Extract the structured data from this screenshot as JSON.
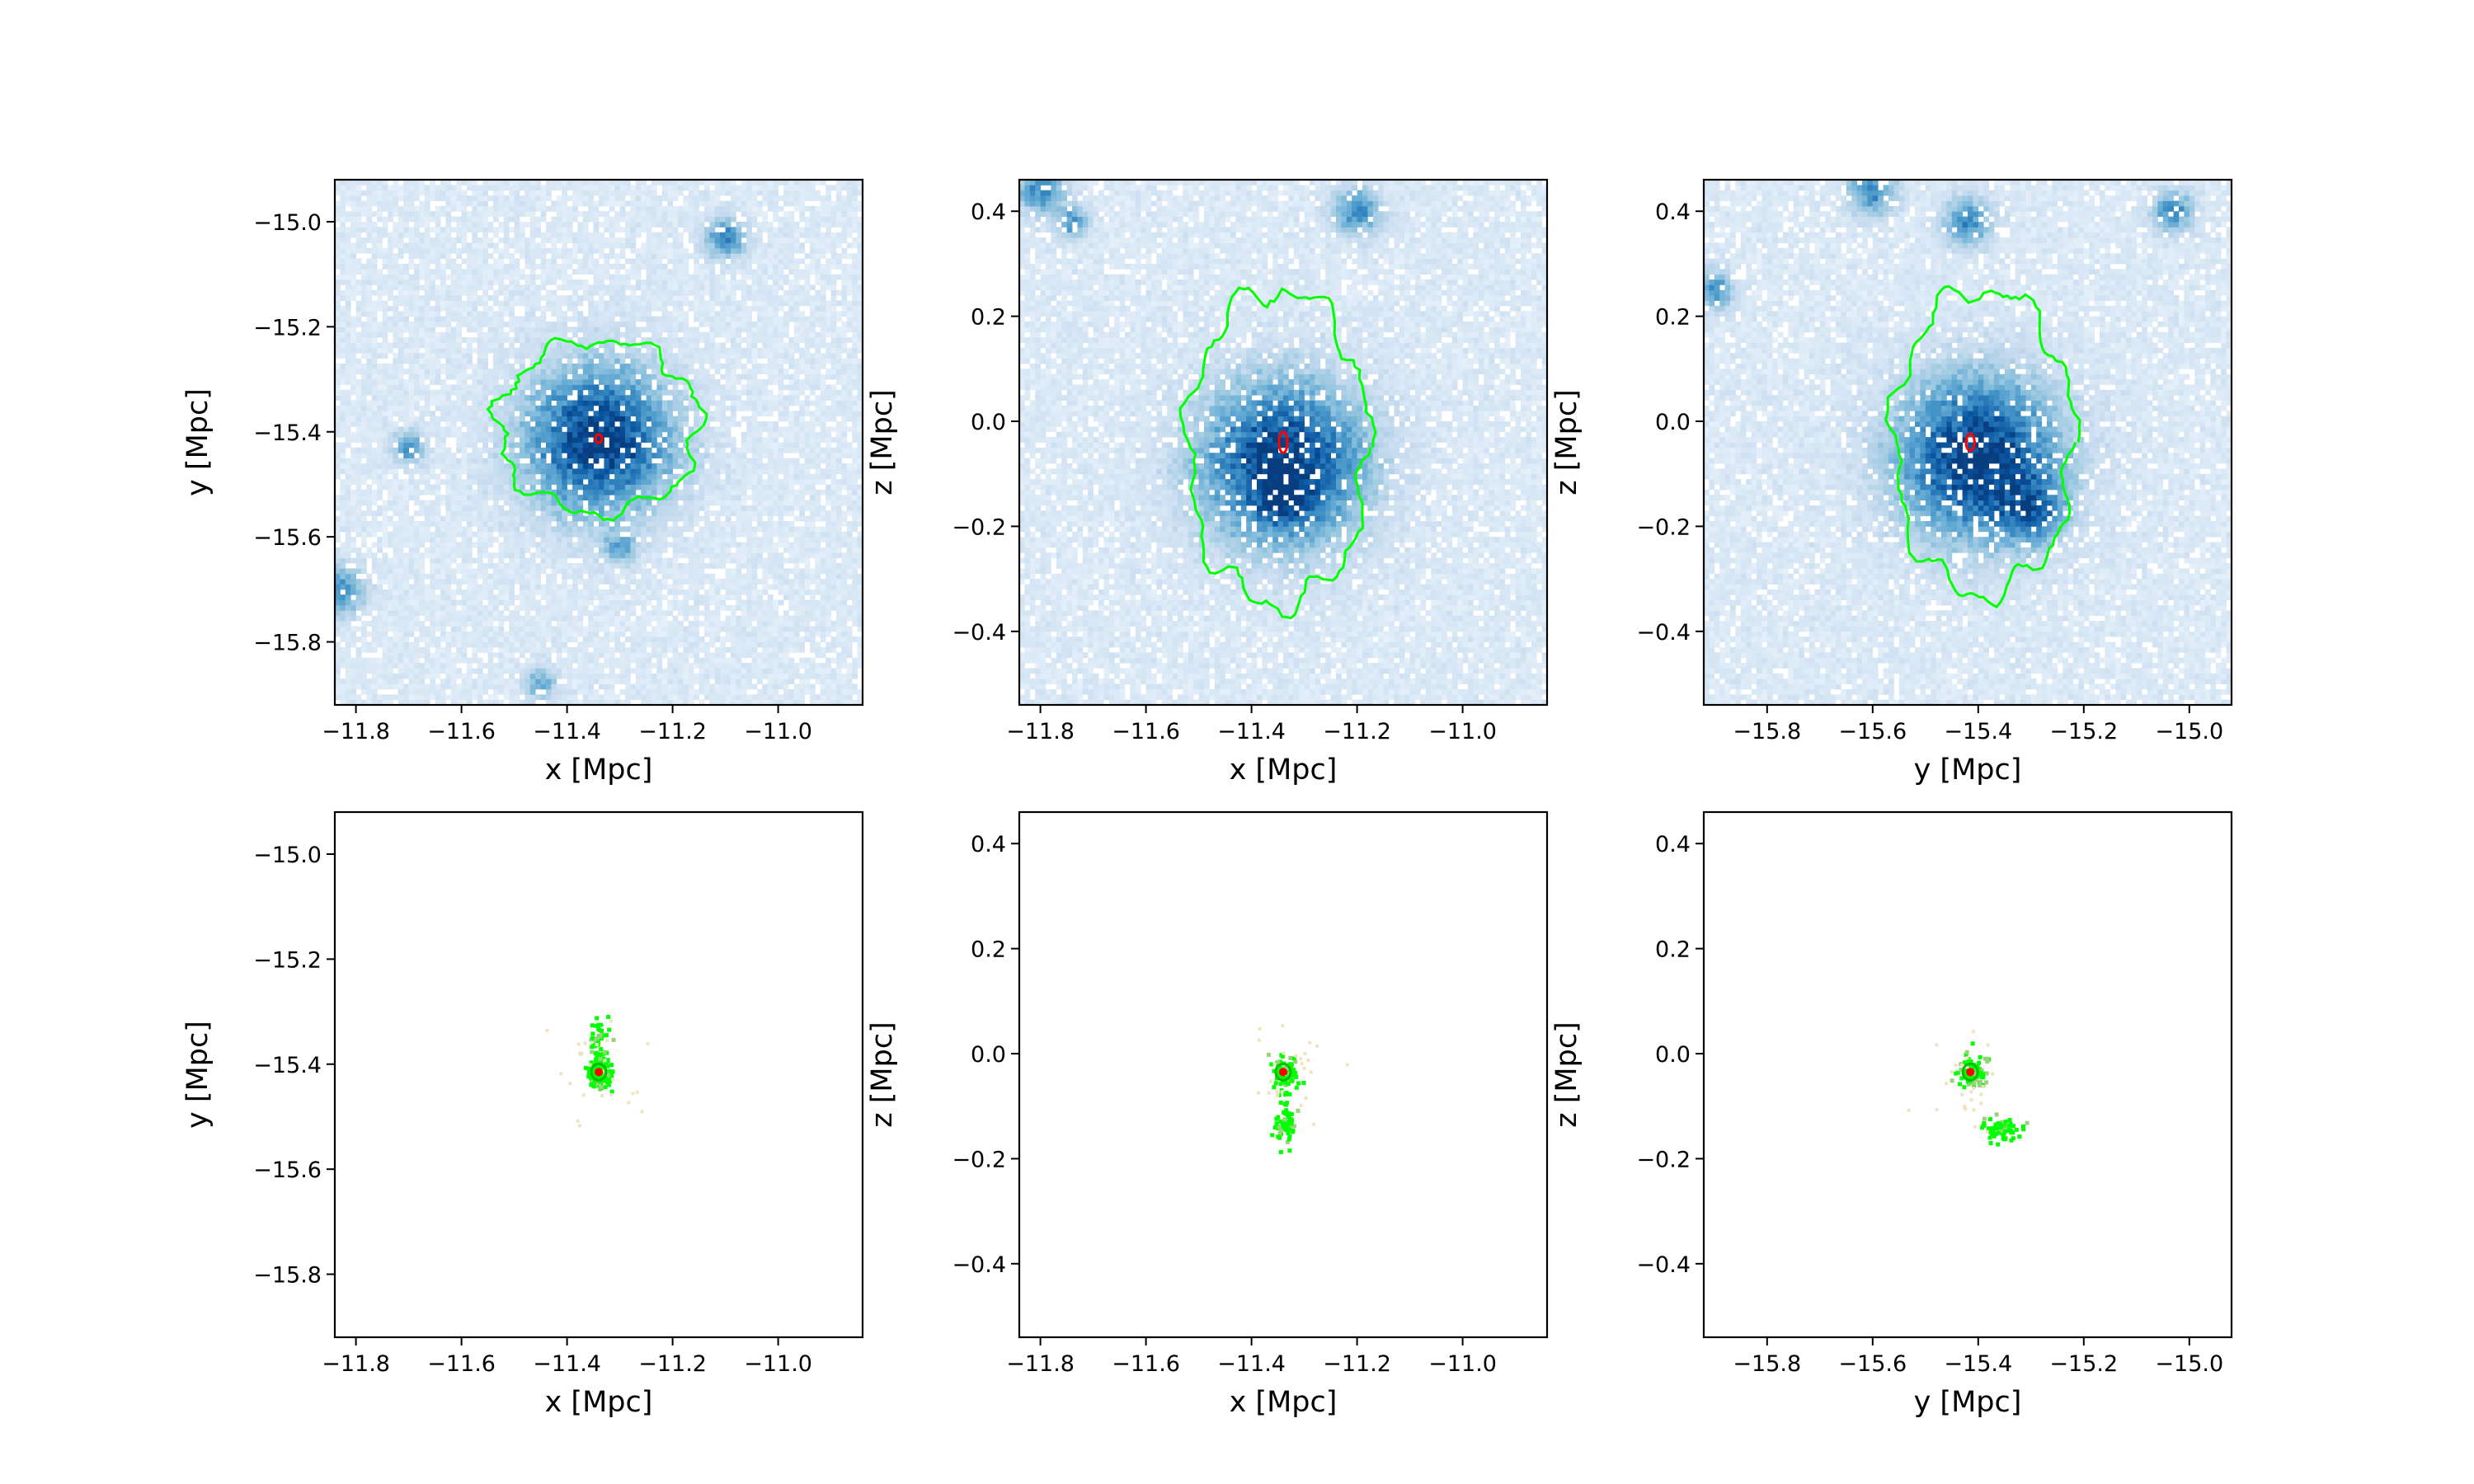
{
  "chart_data": [
    {
      "type": "heatmap",
      "row": "gas",
      "xlabel": "x [Mpc]",
      "ylabel": "y [Mpc]",
      "xlim": [
        -11.84,
        -10.84
      ],
      "ylim": [
        -15.92,
        -14.92
      ],
      "xticks": [
        "−11.8",
        "−11.6",
        "−11.4",
        "−11.2",
        "−11.0"
      ],
      "xtick_values": [
        -11.8,
        -11.6,
        -11.4,
        -11.2,
        -11.0
      ],
      "yticks": [
        "−15.8",
        "−15.6",
        "−15.4",
        "−15.2",
        "−15.0"
      ],
      "ytick_values": [
        -15.8,
        -15.6,
        -15.4,
        -15.2,
        -15.0
      ],
      "center": [
        -11.34,
        -15.415
      ],
      "density_clumps": [
        {
          "x": -11.34,
          "y": -15.415,
          "sigma": 0.09,
          "amp": 1.0
        },
        {
          "x": -11.1,
          "y": -15.03,
          "sigma": 0.025,
          "amp": 0.6
        },
        {
          "x": -11.7,
          "y": -15.43,
          "sigma": 0.02,
          "amp": 0.5
        },
        {
          "x": -11.83,
          "y": -15.7,
          "sigma": 0.03,
          "amp": 0.55
        },
        {
          "x": -11.3,
          "y": -15.62,
          "sigma": 0.02,
          "amp": 0.4
        },
        {
          "x": -11.45,
          "y": -15.88,
          "sigma": 0.02,
          "amp": 0.4
        }
      ],
      "contours": [
        {
          "color": "#00ff00",
          "rx": 0.19,
          "ry": 0.165,
          "cx": -11.34,
          "cy": -15.39
        },
        {
          "color": "#ff0000",
          "rx": 0.006,
          "ry": 0.008,
          "cx": -11.34,
          "cy": -15.413
        }
      ]
    },
    {
      "type": "heatmap",
      "row": "gas",
      "xlabel": "x [Mpc]",
      "ylabel": "z [Mpc]",
      "xlim": [
        -11.84,
        -10.84
      ],
      "ylim": [
        -0.54,
        0.46
      ],
      "xticks": [
        "−11.8",
        "−11.6",
        "−11.4",
        "−11.2",
        "−11.0"
      ],
      "xtick_values": [
        -11.8,
        -11.6,
        -11.4,
        -11.2,
        -11.0
      ],
      "yticks": [
        "−0.4",
        "−0.2",
        "0.0",
        "0.2",
        "0.4"
      ],
      "ytick_values": [
        -0.4,
        -0.2,
        0.0,
        0.2,
        0.4
      ],
      "center": [
        -11.34,
        -0.04
      ],
      "density_clumps": [
        {
          "x": -11.34,
          "y": -0.08,
          "sigma": 0.1,
          "amp": 1.0
        },
        {
          "x": -11.2,
          "y": 0.4,
          "sigma": 0.03,
          "amp": 0.55
        },
        {
          "x": -11.8,
          "y": 0.44,
          "sigma": 0.03,
          "amp": 0.55
        },
        {
          "x": -11.74,
          "y": 0.38,
          "sigma": 0.02,
          "amp": 0.5
        },
        {
          "x": -11.34,
          "y": -0.14,
          "sigma": 0.03,
          "amp": 0.5
        }
      ],
      "contours": [
        {
          "color": "#00ff00",
          "rx": 0.17,
          "ry": 0.3,
          "cx": -11.35,
          "cy": -0.05
        },
        {
          "color": "#ff0000",
          "rx": 0.008,
          "ry": 0.02,
          "cx": -11.34,
          "cy": -0.04
        }
      ]
    },
    {
      "type": "heatmap",
      "row": "gas",
      "xlabel": "y [Mpc]",
      "ylabel": "z [Mpc]",
      "xlim": [
        -15.92,
        -14.92
      ],
      "ylim": [
        -0.54,
        0.46
      ],
      "xticks": [
        "−15.8",
        "−15.6",
        "−15.4",
        "−15.2",
        "−15.0"
      ],
      "xtick_values": [
        -15.8,
        -15.6,
        -15.4,
        -15.2,
        -15.0
      ],
      "yticks": [
        "−0.4",
        "−0.2",
        "0.0",
        "0.2",
        "0.4"
      ],
      "ytick_values": [
        -0.4,
        -0.2,
        0.0,
        0.2,
        0.4
      ],
      "center": [
        -15.415,
        -0.04
      ],
      "density_clumps": [
        {
          "x": -15.4,
          "y": -0.07,
          "sigma": 0.1,
          "amp": 1.0
        },
        {
          "x": -15.6,
          "y": 0.44,
          "sigma": 0.03,
          "amp": 0.55
        },
        {
          "x": -15.42,
          "y": 0.38,
          "sigma": 0.03,
          "amp": 0.55
        },
        {
          "x": -15.03,
          "y": 0.4,
          "sigma": 0.025,
          "amp": 0.55
        },
        {
          "x": -15.9,
          "y": 0.25,
          "sigma": 0.025,
          "amp": 0.5
        },
        {
          "x": -15.3,
          "y": -0.17,
          "sigma": 0.04,
          "amp": 0.55
        }
      ],
      "contours": [
        {
          "color": "#00ff00",
          "rx": 0.17,
          "ry": 0.29,
          "cx": -15.39,
          "cy": -0.04
        },
        {
          "color": "#ff0000",
          "rx": 0.008,
          "ry": 0.016,
          "cx": -15.415,
          "cy": -0.04
        }
      ]
    },
    {
      "type": "heatmap",
      "row": "stars",
      "xlabel": "x [Mpc]",
      "ylabel": "y [Mpc]",
      "xlim": [
        -11.84,
        -10.84
      ],
      "ylim": [
        -15.92,
        -14.92
      ],
      "xticks": [
        "−11.8",
        "−11.6",
        "−11.4",
        "−11.2",
        "−11.0"
      ],
      "xtick_values": [
        -11.8,
        -11.6,
        -11.4,
        -11.2,
        -11.0
      ],
      "yticks": [
        "−15.8",
        "−15.6",
        "−15.4",
        "−15.2",
        "−15.0"
      ],
      "ytick_values": [
        -15.8,
        -15.6,
        -15.4,
        -15.2,
        -15.0
      ],
      "center": [
        -11.34,
        -15.415
      ],
      "clusters": [
        {
          "x": -11.34,
          "y": -15.415,
          "sx": 0.012,
          "sy": 0.012,
          "n": 90
        },
        {
          "x": -11.34,
          "y": -15.37,
          "sx": 0.01,
          "sy": 0.03,
          "n": 70
        }
      ]
    },
    {
      "type": "heatmap",
      "row": "stars",
      "xlabel": "x [Mpc]",
      "ylabel": "z [Mpc]",
      "xlim": [
        -11.84,
        -10.84
      ],
      "ylim": [
        -0.54,
        0.46
      ],
      "xticks": [
        "−11.8",
        "−11.6",
        "−11.4",
        "−11.2",
        "−11.0"
      ],
      "xtick_values": [
        -11.8,
        -11.6,
        -11.4,
        -11.2,
        -11.0
      ],
      "yticks": [
        "−0.4",
        "−0.2",
        "0.0",
        "0.2",
        "0.4"
      ],
      "ytick_values": [
        -0.4,
        -0.2,
        0.0,
        0.2,
        0.4
      ],
      "center": [
        -11.34,
        -0.035
      ],
      "clusters": [
        {
          "x": -11.34,
          "y": -0.035,
          "sx": 0.012,
          "sy": 0.018,
          "n": 90
        },
        {
          "x": -11.34,
          "y": -0.13,
          "sx": 0.01,
          "sy": 0.025,
          "n": 60
        }
      ]
    },
    {
      "type": "heatmap",
      "row": "stars",
      "xlabel": "y [Mpc]",
      "ylabel": "z [Mpc]",
      "xlim": [
        -15.92,
        -14.92
      ],
      "ylim": [
        -0.54,
        0.46
      ],
      "xticks": [
        "−15.8",
        "−15.6",
        "−15.4",
        "−15.2",
        "−15.0"
      ],
      "xtick_values": [
        -15.8,
        -15.6,
        -15.4,
        -15.2,
        -15.0
      ],
      "yticks": [
        "−0.4",
        "−0.2",
        "0.0",
        "0.2",
        "0.4"
      ],
      "ytick_values": [
        -0.4,
        -0.2,
        0.0,
        0.2,
        0.4
      ],
      "center": [
        -15.415,
        -0.035
      ],
      "clusters": [
        {
          "x": -15.415,
          "y": -0.035,
          "sx": 0.014,
          "sy": 0.02,
          "n": 90
        },
        {
          "x": -15.36,
          "y": -0.14,
          "sx": 0.02,
          "sy": 0.012,
          "n": 60
        }
      ]
    }
  ]
}
